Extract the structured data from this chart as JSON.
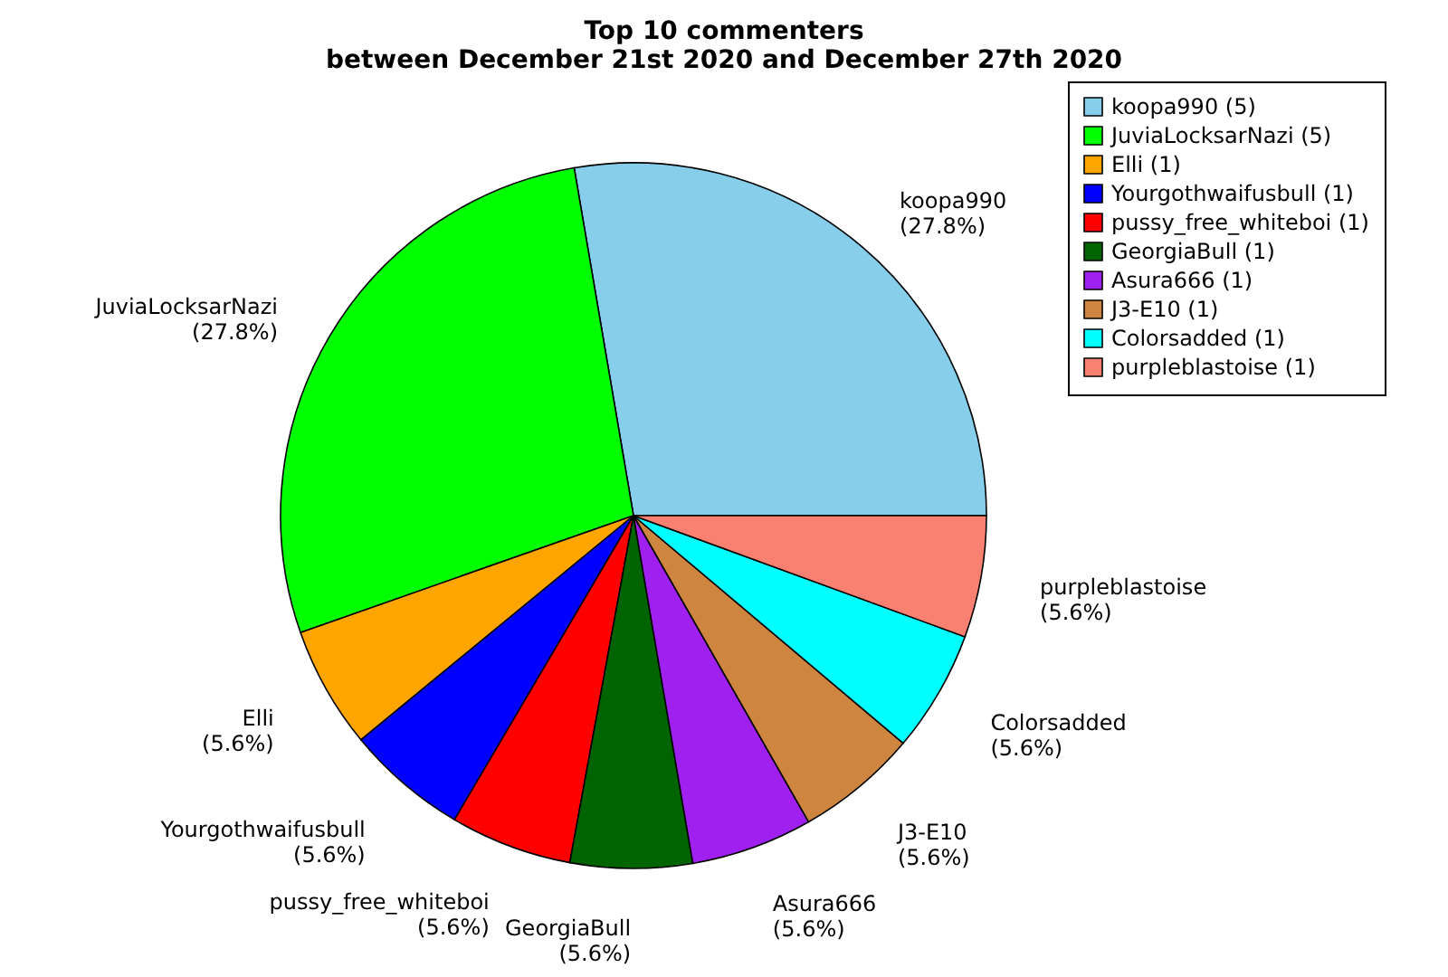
{
  "chart_data": {
    "type": "pie",
    "title": "Top 10 commenters",
    "subtitle": "between December 21st 2020 and December 27th 2020",
    "categories": [
      "koopa990 (5)",
      "JuviaLocksarNazi (5)",
      "Elli (1)",
      "Yourgothwaifusbull (1)",
      "pussy_free_whiteboi (1)",
      "GeorgiaBull (1)",
      "Asura666 (1)",
      "J3-E10 (1)",
      "Colorsadded (1)",
      "purpleblastoise (1)"
    ],
    "values": [
      27.8,
      27.8,
      5.6,
      5.6,
      5.6,
      5.6,
      5.6,
      5.6,
      5.6,
      5.6
    ],
    "value_labels": [
      "koopa990\n(27.8%)",
      "JuviaLocksarNazi\n(27.8%)",
      "Elli\n(5.6%)",
      "Yourgothwaifusbull\n(5.6%)",
      "pussy_free_whiteboi\n(5.6%)",
      "GeorgiaBull\n(5.6%)",
      "Asura666\n(5.6%)",
      "J3-E10\n(5.6%)",
      "Colorsadded\n(5.6%)",
      "purpleblastoise\n(5.6%)"
    ],
    "colors": [
      "#87ceeb",
      "#00ff00",
      "#ffa500",
      "#0000ff",
      "#ff0000",
      "#006400",
      "#a020f0",
      "#cd853f",
      "#00ffff",
      "#fa8072"
    ],
    "legend": "top right"
  }
}
